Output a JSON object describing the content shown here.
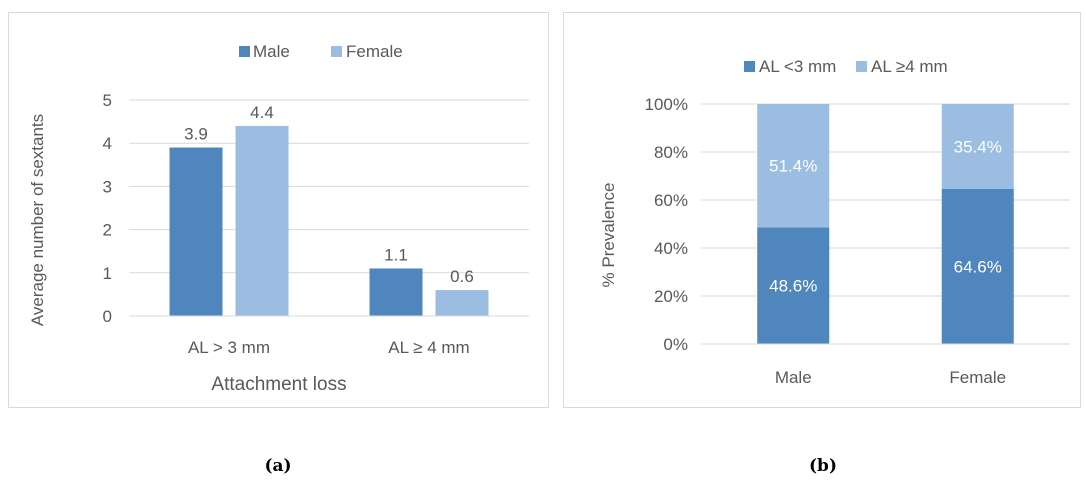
{
  "panel_a": {
    "caption": "(a)",
    "chart_data": {
      "type": "bar",
      "categories": [
        "AL > 3 mm",
        "AL ≥ 4 mm"
      ],
      "series": [
        {
          "name": "Male",
          "values": [
            3.9,
            1.1
          ],
          "labels": [
            "3.9",
            "1.1"
          ]
        },
        {
          "name": "Female",
          "values": [
            4.4,
            0.6
          ],
          "labels": [
            "4.4",
            "0.6"
          ]
        }
      ],
      "xlabel": "Attachment loss",
      "ylabel": "Average number of sextants",
      "ylim": [
        0,
        5
      ],
      "yticks": [
        "0",
        "1",
        "2",
        "3",
        "4",
        "5"
      ],
      "grid": true,
      "legend": "top-center"
    }
  },
  "panel_b": {
    "caption": "(b)",
    "chart_data": {
      "type": "bar",
      "stacked": true,
      "categories": [
        "Male",
        "Female"
      ],
      "series": [
        {
          "name": "AL <3 mm",
          "values": [
            48.6,
            64.6
          ],
          "labels": [
            "48.6%",
            "64.6%"
          ]
        },
        {
          "name": "AL ≥4 mm",
          "values": [
            51.4,
            35.4
          ],
          "labels": [
            "51.4%",
            "35.4%"
          ]
        }
      ],
      "ylabel": "% Prevalence",
      "ylim": [
        0,
        100
      ],
      "yticks": [
        "0%",
        "20%",
        "40%",
        "60%",
        "80%",
        "100%"
      ],
      "grid": true,
      "legend": "top-center"
    }
  },
  "colors": {
    "dark_blue": "#4f86bd",
    "light_blue": "#9bbde2",
    "grid": "#d9d9d9",
    "text": "#595959"
  }
}
